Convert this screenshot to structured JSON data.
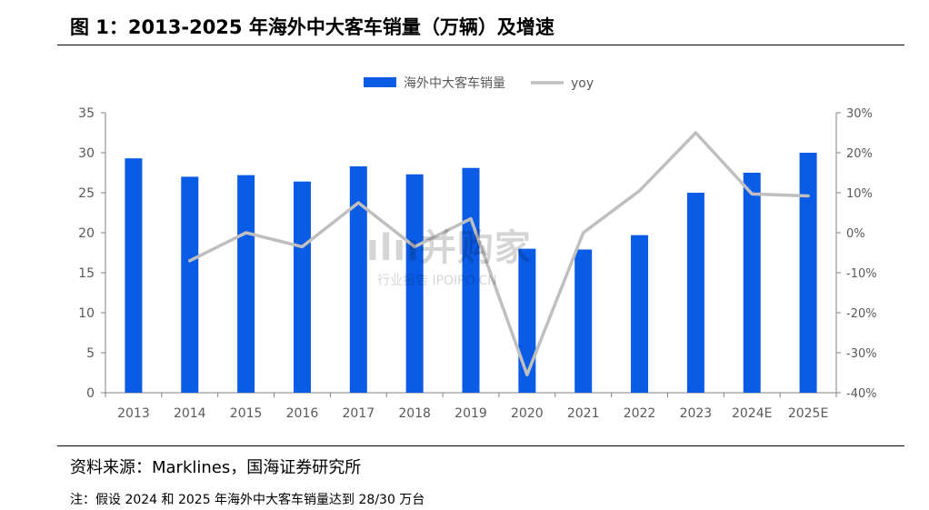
{
  "figure_title": "图 1：2013-2025 年海外中大客车销量（万辆）及增速",
  "source_text": "资料来源：Marklines，国海证券研究所",
  "note_text": "注：假设 2024 和 2025 年海外中大客车销量达到 28/30 万台",
  "watermark": {
    "main": "ılıı并购家",
    "sub": "行业报告 IPOIPO.CN"
  },
  "colors": {
    "bar": "#0A5CE6",
    "line": "#BFBFBF",
    "axis": "#808080",
    "text": "#595959"
  },
  "chart_data": {
    "type": "bar+line",
    "categories": [
      "2013",
      "2014",
      "2015",
      "2016",
      "2017",
      "2018",
      "2019",
      "2020",
      "2021",
      "2022",
      "2023",
      "2024E",
      "2025E"
    ],
    "series": [
      {
        "name": "海外中大客车销量",
        "type": "bar",
        "axis": "left",
        "values": [
          29.3,
          27.0,
          27.2,
          26.4,
          28.3,
          27.3,
          28.1,
          18.0,
          17.9,
          19.7,
          25.0,
          27.5,
          30.0
        ]
      },
      {
        "name": "yoy",
        "type": "line",
        "axis": "right",
        "values": [
          null,
          -7.0,
          0.0,
          -3.5,
          7.5,
          -3.5,
          3.5,
          -35.5,
          0.0,
          10.5,
          25.0,
          9.7,
          9.2
        ]
      }
    ],
    "yleft": {
      "min": 0,
      "max": 35,
      "step": 5,
      "ticks": [
        "0",
        "5",
        "10",
        "15",
        "20",
        "25",
        "30",
        "35"
      ]
    },
    "yright": {
      "min": -40,
      "max": 30,
      "step": 10,
      "ticks": [
        "-40%",
        "-30%",
        "-20%",
        "-10%",
        "0%",
        "10%",
        "20%",
        "30%"
      ]
    },
    "legend_position": "top-center",
    "grid": false
  }
}
